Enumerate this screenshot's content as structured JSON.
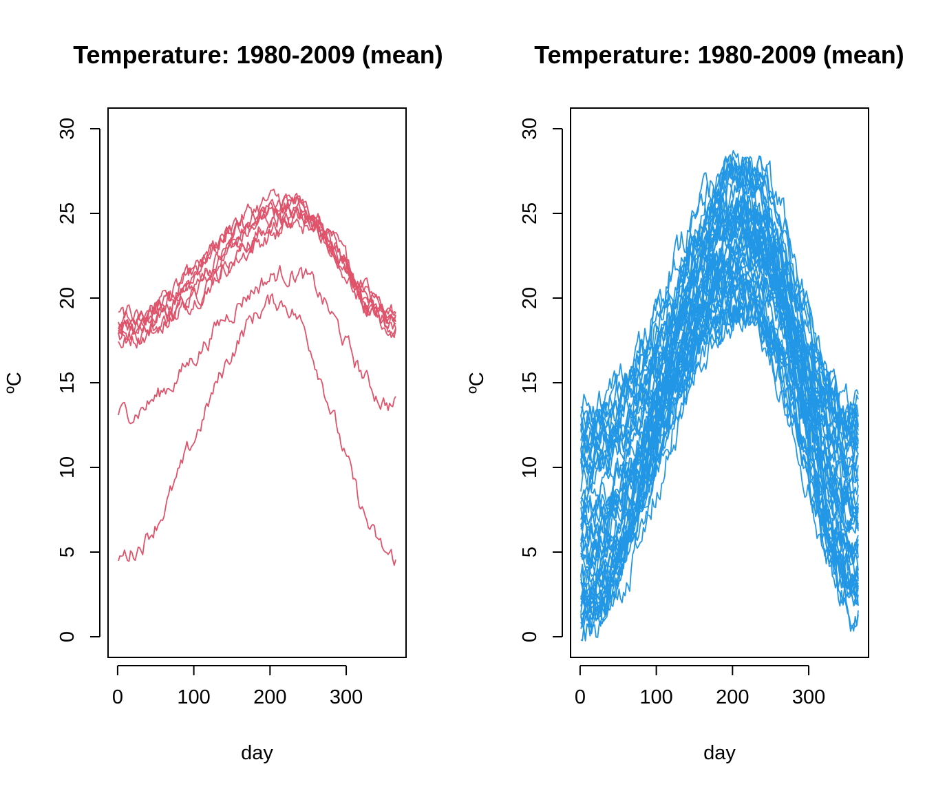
{
  "chart_data": [
    {
      "type": "line",
      "title": "Temperature: 1980-2009 (mean)",
      "xlabel": "day",
      "ylabel": "ºC",
      "xlim": [
        1,
        365
      ],
      "ylim": [
        0,
        30
      ],
      "xticks": [
        0,
        100,
        200,
        300
      ],
      "yticks": [
        0,
        5,
        10,
        15,
        20,
        25,
        30
      ],
      "color": "#DF536B",
      "grid": false,
      "legend": "none",
      "series_count": 10,
      "series_profiles": [
        {
          "start": 18.0,
          "peak": 25.2,
          "peak_day": 232,
          "end": 18.6
        },
        {
          "start": 18.3,
          "peak": 25.6,
          "peak_day": 220,
          "end": 19.0
        },
        {
          "start": 17.8,
          "peak": 24.8,
          "peak_day": 240,
          "end": 18.2
        },
        {
          "start": 18.8,
          "peak": 25.4,
          "peak_day": 228,
          "end": 19.4
        },
        {
          "start": 17.6,
          "peak": 24.6,
          "peak_day": 245,
          "end": 18.0
        },
        {
          "start": 18.5,
          "peak": 25.0,
          "peak_day": 236,
          "end": 19.2
        },
        {
          "start": 17.9,
          "peak": 24.3,
          "peak_day": 250,
          "end": 18.4
        },
        {
          "start": 18.2,
          "peak": 25.8,
          "peak_day": 215,
          "end": 18.8
        },
        {
          "start": 13.2,
          "peak": 21.5,
          "peak_day": 228,
          "end": 13.7
        },
        {
          "start": 4.8,
          "peak": 19.8,
          "peak_day": 212,
          "end": 4.6
        }
      ]
    },
    {
      "type": "line",
      "title": "Temperature: 1980-2009 (mean)",
      "xlabel": "day",
      "ylabel": "ºC",
      "xlim": [
        1,
        365
      ],
      "ylim": [
        0,
        30
      ],
      "xticks": [
        0,
        100,
        200,
        300
      ],
      "yticks": [
        0,
        5,
        10,
        15,
        20,
        25,
        30
      ],
      "color": "#2297E6",
      "grid": false,
      "legend": "none",
      "series_count": 50,
      "series_range": {
        "start": [
          0.3,
          14.0
        ],
        "peak": [
          18.5,
          29.0
        ],
        "peak_day": [
          195,
          235
        ],
        "end": [
          0.8,
          14.0
        ]
      }
    }
  ]
}
